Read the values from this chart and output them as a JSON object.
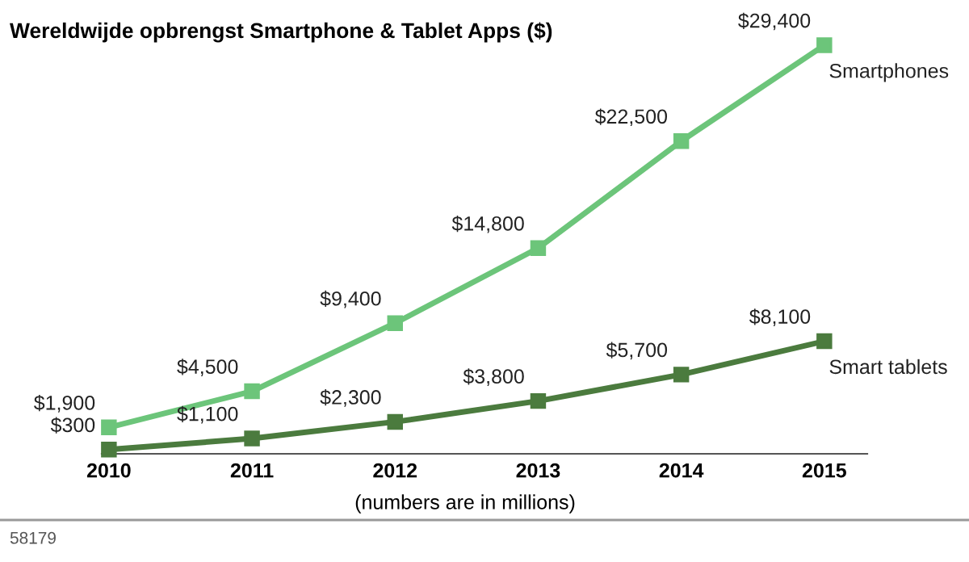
{
  "chart_data": {
    "type": "line",
    "title": "Wereldwijde opbrengst Smartphone & Tablet Apps ($)",
    "categories": [
      "2010",
      "2011",
      "2012",
      "2013",
      "2014",
      "2015"
    ],
    "series": [
      {
        "name": "Smartphones",
        "color": "#6cc57a",
        "values": [
          1900,
          4500,
          9400,
          14800,
          22500,
          29400
        ],
        "value_labels": [
          "$1,900",
          "$4,500",
          "$9,400",
          "$14,800",
          "$22,500",
          "$29,400"
        ]
      },
      {
        "name": "Smart tablets",
        "color": "#4b7b3e",
        "values": [
          300,
          1100,
          2300,
          3800,
          5700,
          8100
        ],
        "value_labels": [
          "$300",
          "$1,100",
          "$2,300",
          "$3,800",
          "$5,700",
          "$8,100"
        ]
      }
    ],
    "marker": "square",
    "line_style": "solid",
    "grid": false,
    "legend": false,
    "annotations": [
      "(numbers are in millions)",
      "58179"
    ]
  }
}
